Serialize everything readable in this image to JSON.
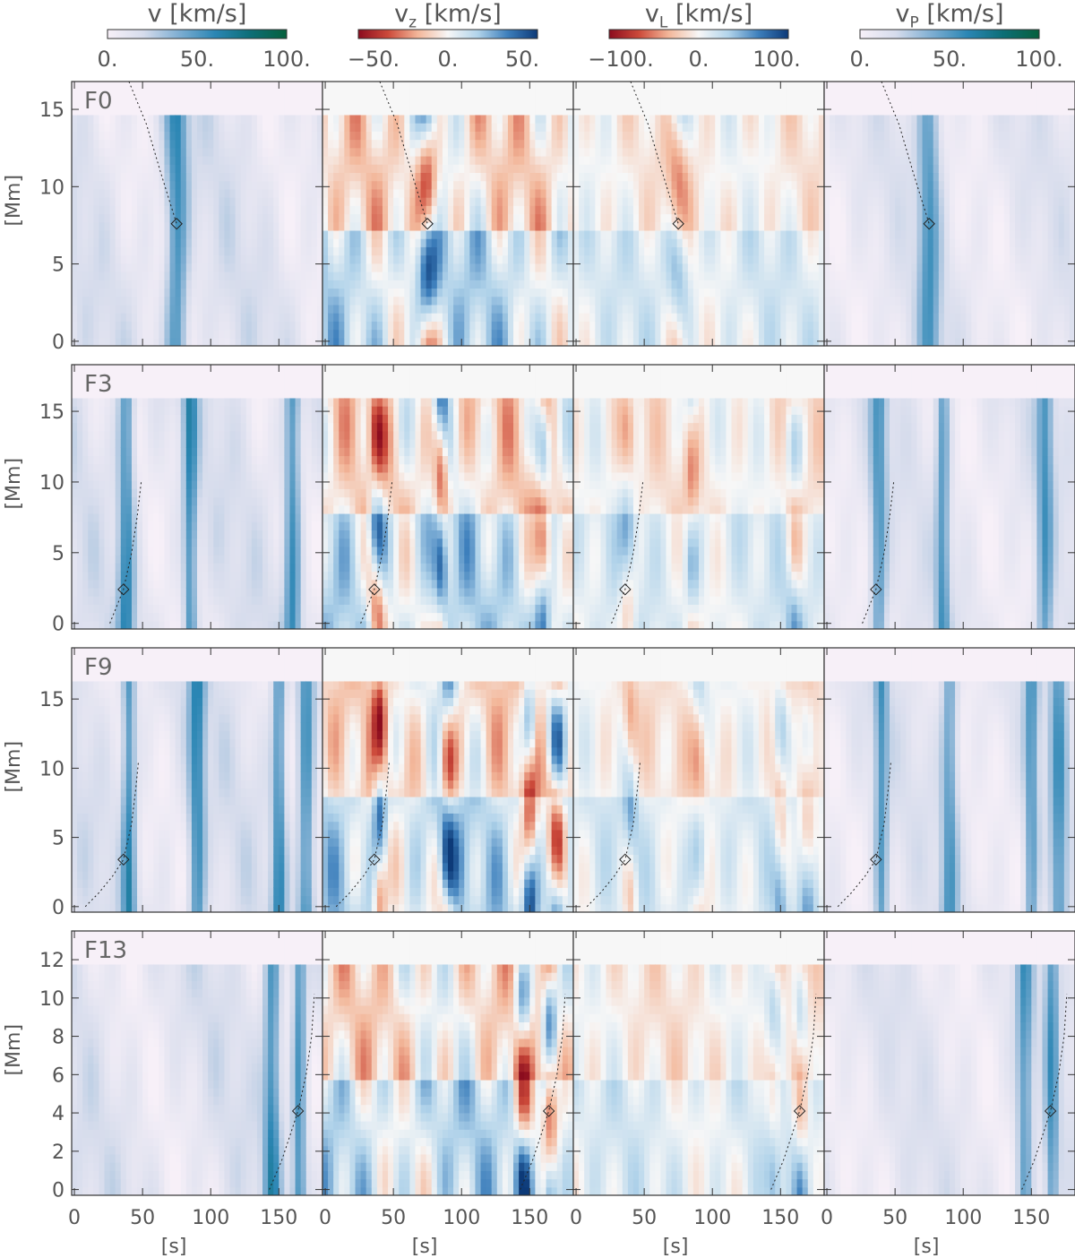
{
  "colorbars": [
    {
      "name": "v",
      "sub": "",
      "unit": "[km/s]",
      "ticks": [
        "0.",
        "50.",
        "100."
      ],
      "tickvals": [
        0,
        50,
        100
      ],
      "range": [
        0,
        100
      ],
      "colormap": [
        "#f7f0f8",
        "#d6dcec",
        "#7eaed2",
        "#2b86b4",
        "#0c6e76",
        "#06603c"
      ]
    },
    {
      "name": "v",
      "sub": "z",
      "unit": "[km/s]",
      "ticks": [
        "−50.",
        "0.",
        "50."
      ],
      "tickvals": [
        -50,
        0,
        50
      ],
      "range": [
        -60,
        60
      ],
      "colormap": [
        "#8b0c1e",
        "#cc4a3a",
        "#f3b79a",
        "#f7f7f7",
        "#b1d3ea",
        "#3d7fbc",
        "#0d3a78"
      ]
    },
    {
      "name": "v",
      "sub": "L",
      "unit": "[km/s]",
      "ticks": [
        "−100.",
        "0.",
        "100."
      ],
      "tickvals": [
        -100,
        0,
        100
      ],
      "range": [
        -115,
        115
      ],
      "colormap": [
        "#8b0c1e",
        "#cc4a3a",
        "#f3b79a",
        "#f7f7f7",
        "#b1d3ea",
        "#3d7fbc",
        "#0d3a78"
      ]
    },
    {
      "name": "v",
      "sub": "P",
      "unit": "[km/s]",
      "ticks": [
        "0.",
        "50.",
        "100."
      ],
      "tickvals": [
        0,
        50,
        100
      ],
      "range": [
        0,
        100
      ],
      "colormap": [
        "#f7f0f8",
        "#d6dcec",
        "#7eaed2",
        "#2b86b4",
        "#0c6e76",
        "#06603c"
      ]
    }
  ],
  "rows": [
    {
      "label": "F0",
      "yticks": [
        0,
        5,
        10,
        15
      ],
      "ylim": [
        -0.3,
        16.8
      ],
      "diamond": [
        75,
        7.6
      ],
      "track": [
        [
          40,
          16.8
        ],
        [
          53,
          14
        ],
        [
          63,
          11
        ],
        [
          70,
          9
        ],
        [
          75,
          7.6
        ]
      ]
    },
    {
      "label": "F3",
      "yticks": [
        0,
        5,
        10,
        15
      ],
      "ylim": [
        -0.4,
        18.3
      ],
      "diamond": [
        36,
        2.4
      ],
      "track": [
        [
          26,
          0
        ],
        [
          31,
          1.2
        ],
        [
          36,
          2.4
        ],
        [
          42,
          5
        ],
        [
          46,
          7.5
        ],
        [
          49,
          10
        ]
      ]
    },
    {
      "label": "F9",
      "yticks": [
        0,
        5,
        10,
        15
      ],
      "ylim": [
        -0.4,
        18.7
      ],
      "diamond": [
        36,
        3.4
      ],
      "track": [
        [
          8,
          0
        ],
        [
          18,
          1
        ],
        [
          28,
          2.2
        ],
        [
          36,
          3.4
        ],
        [
          42,
          6
        ],
        [
          45,
          8.5
        ],
        [
          47,
          10.5
        ]
      ]
    },
    {
      "label": "F13",
      "yticks": [
        0,
        2,
        4,
        6,
        8,
        10,
        12
      ],
      "ylim": [
        -0.3,
        13.5
      ],
      "diamond": [
        164,
        4.1
      ],
      "track": [
        [
          143,
          0
        ],
        [
          152,
          1.5
        ],
        [
          159,
          3
        ],
        [
          164,
          4.1
        ],
        [
          170,
          6
        ],
        [
          174,
          8
        ],
        [
          176,
          10.2
        ]
      ]
    }
  ],
  "xticks": [
    0,
    50,
    100,
    150
  ],
  "xlim": [
    -2,
    182
  ],
  "ylabel": "[Mm]",
  "xlabel": "[s]",
  "chart_data": [
    {
      "type": "heatmap",
      "title": "v [km/s]",
      "xlabel": "[s]",
      "ylabel": "[Mm]",
      "panels": [
        "F0",
        "F3",
        "F9",
        "F13"
      ],
      "colorbar_ticks": [
        0,
        50,
        100
      ],
      "crange": [
        0,
        100
      ]
    },
    {
      "type": "heatmap",
      "title": "vz [km/s]",
      "xlabel": "[s]",
      "ylabel": "[Mm]",
      "panels": [
        "F0",
        "F3",
        "F9",
        "F13"
      ],
      "colorbar_ticks": [
        -50,
        0,
        50
      ],
      "crange": [
        -60,
        60
      ]
    },
    {
      "type": "heatmap",
      "title": "vL [km/s]",
      "xlabel": "[s]",
      "ylabel": "[Mm]",
      "panels": [
        "F0",
        "F3",
        "F9",
        "F13"
      ],
      "colorbar_ticks": [
        -100,
        0,
        100
      ],
      "crange": [
        -115,
        115
      ]
    },
    {
      "type": "heatmap",
      "title": "vP [km/s]",
      "xlabel": "[s]",
      "ylabel": "[Mm]",
      "panels": [
        "F0",
        "F3",
        "F9",
        "F13"
      ],
      "colorbar_ticks": [
        0,
        50,
        100
      ],
      "crange": [
        0,
        100
      ]
    }
  ]
}
